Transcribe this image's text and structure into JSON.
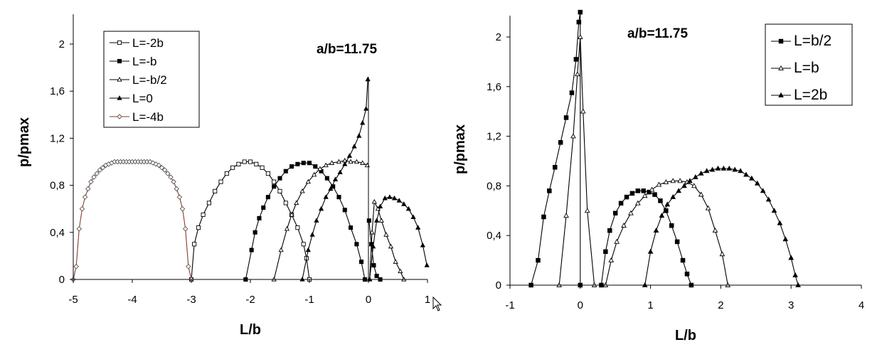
{
  "chart_data": [
    {
      "type": "line",
      "title": "",
      "annotation": "a/b=11.75",
      "xlabel": "L/b",
      "ylabel": "p/pmax",
      "xlim": [
        -5,
        1
      ],
      "ylim": [
        0,
        2.2
      ],
      "xticks": [
        "-5",
        "-4",
        "-3",
        "-2",
        "-1",
        "0",
        "1"
      ],
      "yticks": [
        "0",
        "0,4",
        "0,8",
        "1,2",
        "1,6",
        "2"
      ],
      "grid": false,
      "legend_position": "top-left",
      "series": [
        {
          "name": "L=-2b",
          "marker": "square-open",
          "color": "#000000",
          "x": [
            -3.0,
            -2.95,
            -2.88,
            -2.8,
            -2.7,
            -2.6,
            -2.5,
            -2.4,
            -2.3,
            -2.2,
            -2.1,
            -2.0,
            -1.9,
            -1.8,
            -1.7,
            -1.6,
            -1.5,
            -1.4,
            -1.3,
            -1.2,
            -1.1,
            -1.05,
            -1.0
          ],
          "y": [
            0.0,
            0.3,
            0.44,
            0.55,
            0.65,
            0.75,
            0.83,
            0.9,
            0.95,
            0.98,
            1.0,
            1.0,
            0.98,
            0.95,
            0.9,
            0.83,
            0.75,
            0.65,
            0.55,
            0.44,
            0.3,
            0.18,
            0.0
          ]
        },
        {
          "name": "L=-b",
          "marker": "square-filled",
          "color": "#000000",
          "x": [
            -2.08,
            -1.98,
            -1.92,
            -1.85,
            -1.78,
            -1.7,
            -1.6,
            -1.5,
            -1.4,
            -1.3,
            -1.2,
            -1.1,
            -1.0,
            -0.9,
            -0.8,
            -0.7,
            -0.6,
            -0.5,
            -0.4,
            -0.3,
            -0.2,
            -0.12,
            -0.06
          ],
          "y": [
            0.0,
            0.25,
            0.4,
            0.52,
            0.61,
            0.7,
            0.79,
            0.86,
            0.92,
            0.96,
            0.98,
            0.99,
            0.99,
            0.96,
            0.92,
            0.86,
            0.79,
            0.7,
            0.59,
            0.44,
            0.3,
            0.15,
            0.0
          ]
        },
        {
          "name": "L=-b/2",
          "marker": "triangle-open",
          "color": "#000000",
          "x": [
            -1.6,
            -1.48,
            -1.38,
            -1.3,
            -1.22,
            -1.12,
            -1.02,
            -0.92,
            -0.82,
            -0.72,
            -0.62,
            -0.5,
            -0.4,
            -0.3,
            -0.2,
            -0.1,
            -0.02
          ],
          "y": [
            0.0,
            0.25,
            0.43,
            0.55,
            0.65,
            0.75,
            0.83,
            0.89,
            0.94,
            0.97,
            0.99,
            1.0,
            1.01,
            1.0,
            1.0,
            0.99,
            0.97
          ]
        },
        {
          "name": "L=0",
          "marker": "triangle-filled",
          "color": "#000000",
          "x": [
            -1.12,
            -1.02,
            -0.95,
            -0.88,
            -0.8,
            -0.72,
            -0.64,
            -0.56,
            -0.48,
            -0.4,
            -0.32,
            -0.24,
            -0.16,
            -0.1,
            -0.04,
            -0.01
          ],
          "y": [
            0.0,
            0.25,
            0.38,
            0.5,
            0.6,
            0.7,
            0.77,
            0.85,
            0.91,
            0.98,
            1.05,
            1.13,
            1.22,
            1.33,
            1.45,
            1.7
          ]
        },
        {
          "name": "L=-4b",
          "marker": "diamond-open",
          "color": "#8b3a2a",
          "x": [
            -5.0,
            -4.95,
            -4.9,
            -4.85,
            -4.8,
            -4.75,
            -4.7,
            -4.65,
            -4.6,
            -4.55,
            -4.5,
            -4.45,
            -4.4,
            -4.35,
            -4.3,
            -4.25,
            -4.2,
            -4.15,
            -4.1,
            -4.05,
            -4.0,
            -3.95,
            -3.9,
            -3.85,
            -3.8,
            -3.75,
            -3.7,
            -3.65,
            -3.6,
            -3.55,
            -3.5,
            -3.45,
            -3.4,
            -3.35,
            -3.3,
            -3.25,
            -3.2,
            -3.15,
            -3.1,
            -3.05,
            -3.0
          ],
          "y": [
            0.0,
            0.11,
            0.43,
            0.6,
            0.7,
            0.77,
            0.83,
            0.87,
            0.9,
            0.93,
            0.95,
            0.97,
            0.98,
            0.99,
            1.0,
            1.0,
            1.0,
            1.0,
            1.0,
            1.0,
            1.0,
            1.0,
            1.0,
            1.0,
            1.0,
            1.0,
            1.0,
            0.99,
            0.98,
            0.97,
            0.95,
            0.93,
            0.9,
            0.87,
            0.83,
            0.77,
            0.7,
            0.6,
            0.43,
            0.11,
            0.0
          ]
        },
        {
          "name": "",
          "marker": "triangle-open",
          "color": "#000000",
          "x": [
            0.02,
            0.06,
            0.1,
            0.16,
            0.22,
            0.3,
            0.38,
            0.46,
            0.54,
            0.6
          ],
          "y": [
            0.0,
            0.4,
            0.66,
            0.6,
            0.5,
            0.38,
            0.28,
            0.15,
            0.07,
            0.0
          ]
        },
        {
          "name": "",
          "marker": "triangle-filled",
          "color": "#000000",
          "x": [
            0.02,
            0.08,
            0.14,
            0.2,
            0.28,
            0.36,
            0.44,
            0.52,
            0.6,
            0.68,
            0.76,
            0.84,
            0.92,
            0.99
          ],
          "y": [
            0.0,
            0.28,
            0.5,
            0.62,
            0.69,
            0.7,
            0.69,
            0.67,
            0.64,
            0.6,
            0.53,
            0.44,
            0.29,
            0.12
          ]
        },
        {
          "name": "",
          "marker": "square-filled",
          "color": "#000000",
          "x": [
            0.01,
            0.05,
            0.09,
            0.14,
            0.2
          ],
          "y": [
            0.5,
            0.3,
            0.12,
            0.03,
            0.0
          ]
        }
      ],
      "vertical_line_at_x": 0
    },
    {
      "type": "line",
      "title": "",
      "annotation": "a/b=11.75",
      "xlabel": "L/b",
      "ylabel": "p/pmax",
      "xlim": [
        -1,
        4
      ],
      "ylim": [
        0,
        2.2
      ],
      "xticks": [
        "-1",
        "0",
        "1",
        "2",
        "3",
        "4"
      ],
      "yticks": [
        "0",
        "0,4",
        "0,8",
        "1,2",
        "1,6",
        "2"
      ],
      "grid": false,
      "legend_position": "top-right",
      "series": [
        {
          "name": "L=b/2",
          "marker": "square-filled",
          "color": "#000000",
          "x": [
            -0.7,
            -0.6,
            -0.52,
            -0.44,
            -0.36,
            -0.28,
            -0.2,
            -0.12,
            -0.06,
            -0.02,
            0.0,
            0.0,
            0.3,
            0.36,
            0.42,
            0.5,
            0.58,
            0.66,
            0.74,
            0.82,
            0.9,
            0.98,
            1.06,
            1.14,
            1.22,
            1.3,
            1.38,
            1.46,
            1.52,
            1.58
          ],
          "y": [
            0.0,
            0.2,
            0.55,
            0.76,
            0.95,
            1.15,
            1.35,
            1.55,
            1.82,
            2.12,
            2.2,
            0.0,
            0.0,
            0.27,
            0.44,
            0.58,
            0.66,
            0.71,
            0.74,
            0.76,
            0.76,
            0.75,
            0.73,
            0.68,
            0.6,
            0.48,
            0.35,
            0.2,
            0.09,
            0.0
          ]
        },
        {
          "name": "L=b",
          "marker": "triangle-open",
          "color": "#000000",
          "x": [
            -0.3,
            -0.2,
            -0.1,
            -0.04,
            0.0,
            0.04,
            0.1,
            0.2,
            0.36,
            0.44,
            0.52,
            0.62,
            0.72,
            0.82,
            0.92,
            1.02,
            1.12,
            1.22,
            1.32,
            1.42,
            1.52,
            1.62,
            1.72,
            1.82,
            1.92,
            2.02,
            2.1
          ],
          "y": [
            0.0,
            0.56,
            1.2,
            1.7,
            2.0,
            1.4,
            0.6,
            0.0,
            0.0,
            0.2,
            0.35,
            0.48,
            0.58,
            0.66,
            0.72,
            0.77,
            0.81,
            0.83,
            0.84,
            0.84,
            0.83,
            0.8,
            0.73,
            0.62,
            0.44,
            0.25,
            0.0
          ]
        },
        {
          "name": "L=2b",
          "marker": "triangle-filled",
          "color": "#000000",
          "x": [
            0.92,
            1.0,
            1.08,
            1.16,
            1.24,
            1.32,
            1.4,
            1.48,
            1.56,
            1.64,
            1.72,
            1.8,
            1.88,
            1.96,
            2.04,
            2.12,
            2.2,
            2.28,
            2.36,
            2.44,
            2.52,
            2.6,
            2.68,
            2.76,
            2.84,
            2.92,
            3.0,
            3.06,
            3.1
          ],
          "y": [
            0.0,
            0.27,
            0.44,
            0.56,
            0.65,
            0.71,
            0.76,
            0.8,
            0.84,
            0.87,
            0.9,
            0.92,
            0.93,
            0.94,
            0.94,
            0.94,
            0.93,
            0.92,
            0.89,
            0.86,
            0.82,
            0.76,
            0.69,
            0.6,
            0.5,
            0.37,
            0.22,
            0.08,
            0.0
          ]
        }
      ]
    }
  ]
}
